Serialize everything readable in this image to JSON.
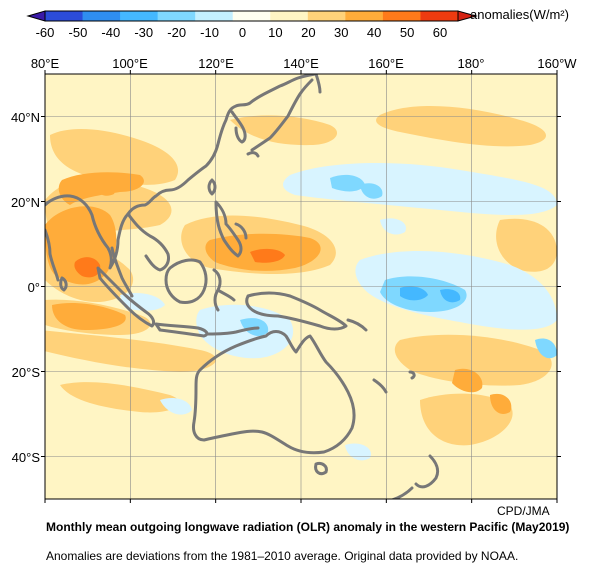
{
  "colorbar": {
    "ticks": [
      "-60",
      "-50",
      "-40",
      "-30",
      "-20",
      "-10",
      "0",
      "10",
      "20",
      "30",
      "40",
      "50",
      "60"
    ],
    "units": "anomalies(W/m²)",
    "colors": [
      "#2b4cd9",
      "#2f8ef0",
      "#44b8ff",
      "#7fd8ff",
      "#c4f0ff",
      "#fffff0",
      "#fff5c4",
      "#ffd27a",
      "#ffac3a",
      "#ff7a1a",
      "#ee3b10"
    ]
  },
  "map": {
    "lon_labels": [
      "80°E",
      "100°E",
      "120°E",
      "140°E",
      "160°E",
      "180°",
      "160°W"
    ],
    "lat_labels": [
      "40°N",
      "20°N",
      "0°",
      "20°S",
      "40°S"
    ],
    "lon_range": [
      80,
      200
    ],
    "lat_range": [
      -50,
      50
    ],
    "grid_spacing_deg": 20,
    "coastline_color": "#777777"
  },
  "credit": "CPD/JMA",
  "caption": {
    "title": "Monthly mean outgoing longwave radiation (OLR) anomaly in the western Pacific (May2019)",
    "note": "Anomalies are deviations from the 1981–2010 average. Original data provided by NOAA."
  }
}
